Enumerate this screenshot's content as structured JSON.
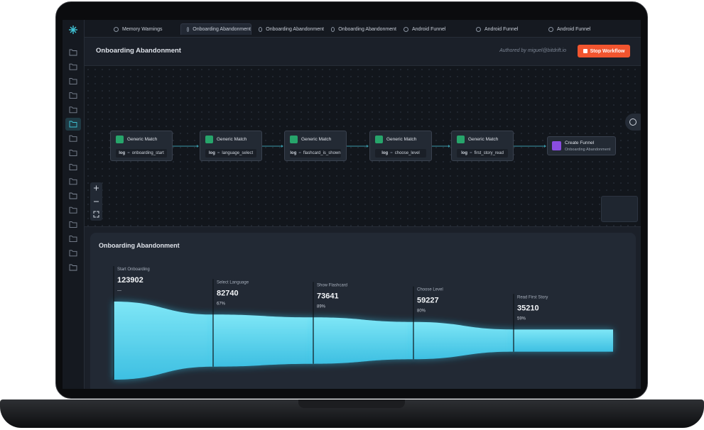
{
  "tabs": [
    "Memory Warnings",
    "Onboarding Abandonment",
    "Onboarding Abandonment",
    "Onboarding Abandonment",
    "Android Funnel",
    "Android Funnel",
    "Android Funnel"
  ],
  "header": {
    "title": "Onboarding Abandonment",
    "author": "Authored by miguel@bitdrift.io",
    "button": "Stop Workflow"
  },
  "nodes": [
    {
      "title": "Generic Match",
      "key": "log",
      "op": "=",
      "value": "onboarding_start"
    },
    {
      "title": "Generic Match",
      "key": "log",
      "op": "=",
      "value": "language_select"
    },
    {
      "title": "Generic Match",
      "key": "log",
      "op": "=",
      "value": "flashcard_is_shown"
    },
    {
      "title": "Generic Match",
      "key": "log",
      "op": "=",
      "value": "choose_level"
    },
    {
      "title": "Generic Match",
      "key": "log",
      "op": "=",
      "value": "first_story_read"
    }
  ],
  "final_node": {
    "title": "Create Funnel",
    "subtitle": "Onboarding Abandonment"
  },
  "funnel": {
    "title": "Onboarding Abandonment",
    "stages": [
      {
        "label": "Start Onboarding",
        "value": 123902,
        "pct": "—"
      },
      {
        "label": "Select Language",
        "value": 82740,
        "pct": "67%"
      },
      {
        "label": "Show Flashcard",
        "value": 73641,
        "pct": "89%"
      },
      {
        "label": "Choose Level",
        "value": 59227,
        "pct": "80%"
      },
      {
        "label": "Read First Story",
        "value": 35210,
        "pct": "59%"
      }
    ]
  }
}
